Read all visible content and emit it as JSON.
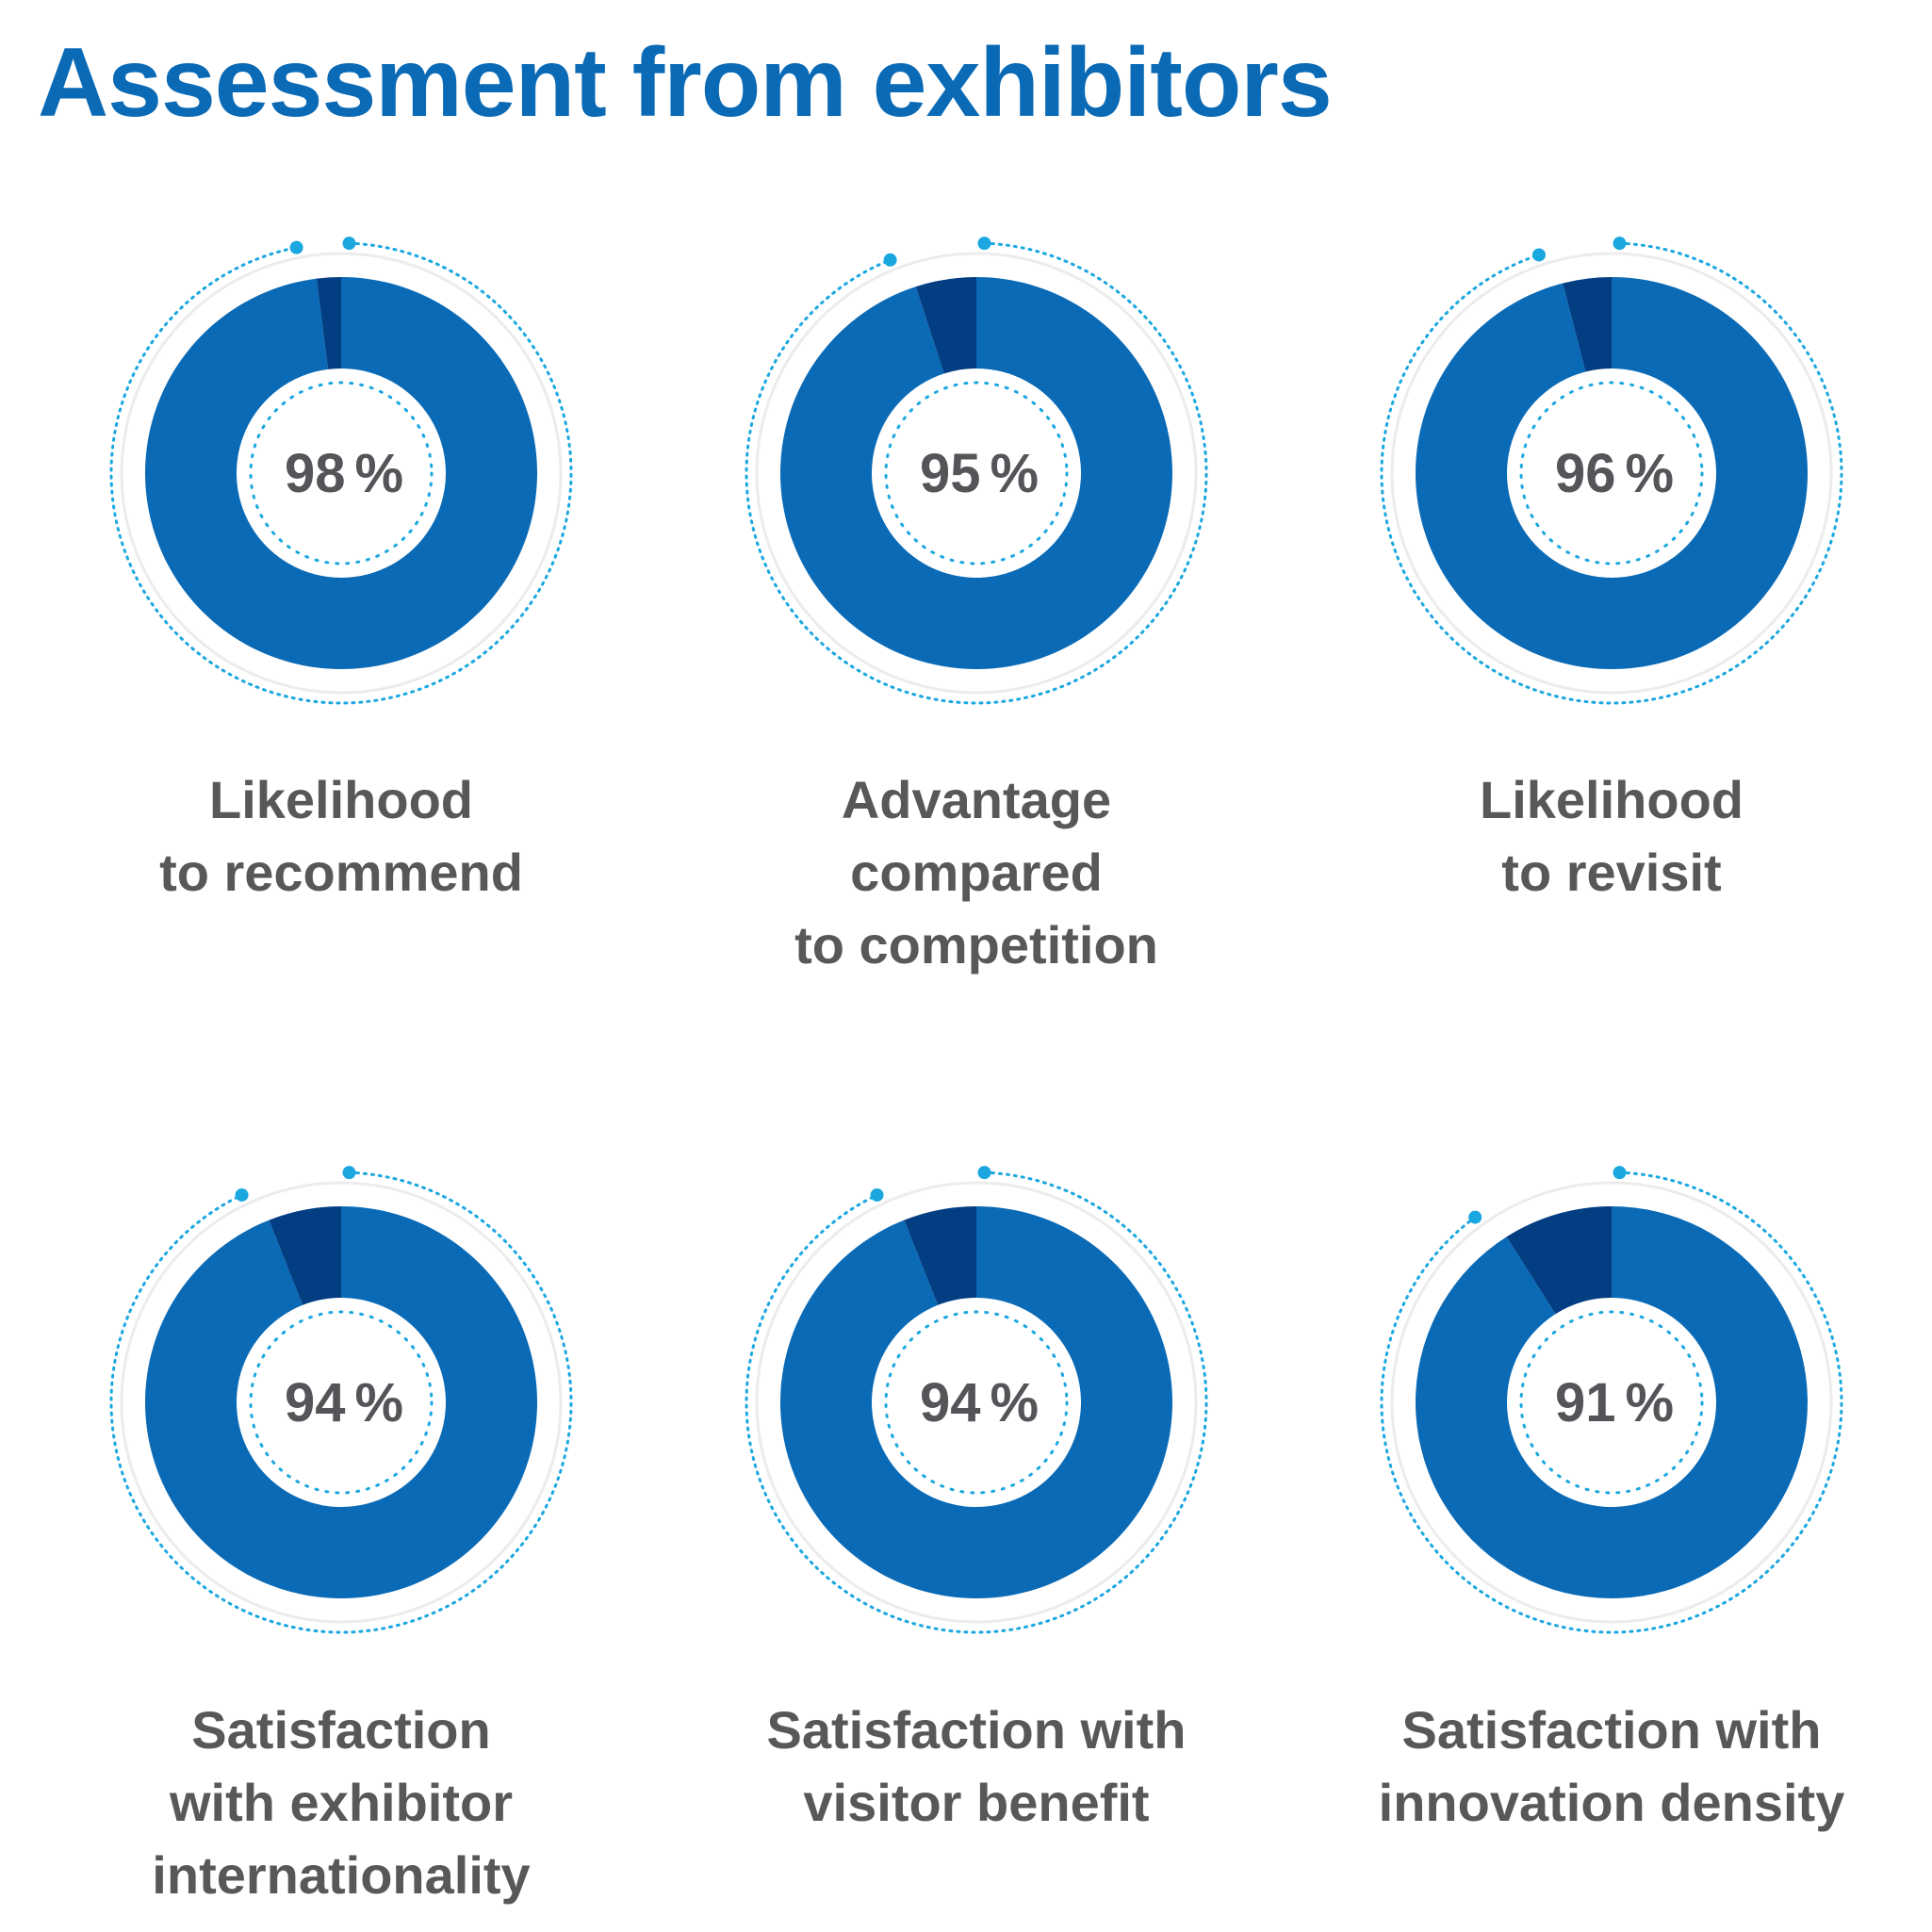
{
  "title": "Assessment from exhibitors",
  "colors": {
    "title": "#0a6ab6",
    "ring_main": "#0a6ab6",
    "ring_rest": "#033d82",
    "dots": "#1aa7e0",
    "outer_ring": "#ececec",
    "text": "#58585a"
  },
  "chart_data": {
    "type": "donut",
    "unit": "%",
    "items": [
      {
        "label_lines": [
          "Likelihood",
          "to recommend"
        ],
        "value": 98,
        "display": "98",
        "percent_sign": "%"
      },
      {
        "label_lines": [
          "Advantage",
          "compared",
          "to competition"
        ],
        "value": 95,
        "display": "95",
        "percent_sign": "%"
      },
      {
        "label_lines": [
          "Likelihood",
          "to revisit"
        ],
        "value": 96,
        "display": "96",
        "percent_sign": "%"
      },
      {
        "label_lines": [
          "Satisfaction",
          "with exhibitor",
          "internationality"
        ],
        "value": 94,
        "display": "94",
        "percent_sign": "%"
      },
      {
        "label_lines": [
          "Satisfaction with",
          "visitor benefit"
        ],
        "value": 94,
        "display": "94",
        "percent_sign": "%"
      },
      {
        "label_lines": [
          "Satisfaction with",
          "innovation density"
        ],
        "value": 91,
        "display": "91",
        "percent_sign": "%"
      }
    ]
  }
}
